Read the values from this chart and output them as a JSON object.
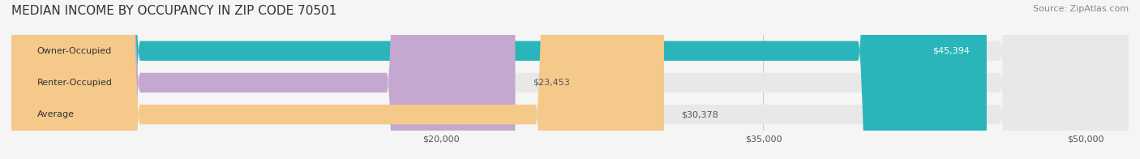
{
  "title": "MEDIAN INCOME BY OCCUPANCY IN ZIP CODE 70501",
  "source": "Source: ZipAtlas.com",
  "categories": [
    "Owner-Occupied",
    "Renter-Occupied",
    "Average"
  ],
  "values": [
    45394,
    23453,
    30378
  ],
  "bar_colors": [
    "#2ab5bb",
    "#c4a8d0",
    "#f5c98a"
  ],
  "bar_edge_colors": [
    "#2ab5bb",
    "#c4a8d0",
    "#f5c98a"
  ],
  "label_colors": [
    "#ffffff",
    "#555555",
    "#555555"
  ],
  "value_labels": [
    "$45,394",
    "$23,453",
    "$30,378"
  ],
  "xlim": [
    0,
    52000
  ],
  "xticks": [
    20000,
    35000,
    50000
  ],
  "xtick_labels": [
    "$20,000",
    "$35,000",
    "$50,000"
  ],
  "background_color": "#f5f5f5",
  "bar_background_color": "#e8e8e8",
  "title_fontsize": 11,
  "source_fontsize": 8,
  "bar_label_fontsize": 8,
  "value_label_fontsize": 8,
  "tick_fontsize": 8
}
